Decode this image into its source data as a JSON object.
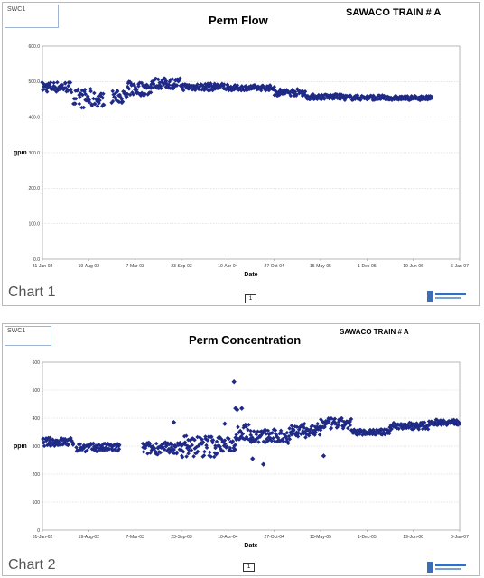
{
  "chart_data": [
    {
      "type": "scatter",
      "panel_tag": "SWC1",
      "title": "Perm Flow",
      "train_label": "SAWACO TRAIN # A",
      "corner_label": "Chart 1",
      "nav_label": "1",
      "xlabel": "Date",
      "ylabel": "gpm",
      "ylim": [
        0,
        600
      ],
      "yticks": [
        "0.0",
        "100.0",
        "200.0",
        "300.0",
        "400.0",
        "500.0",
        "600.0"
      ],
      "xticks": [
        "31-Jan-02",
        "19-Aug-02",
        "7-Mar-03",
        "23-Sep-03",
        "10-Apr-04",
        "27-Oct-04",
        "15-May-05",
        "1-Dec-05",
        "19-Jun-06",
        "6-Jan-07"
      ],
      "grid": true,
      "legend": "none",
      "marker_color": "#1f2a86",
      "series": [
        {
          "segments": [
            {
              "x0": 0.0,
              "x1": 1.9,
              "lo": 470,
              "hi": 500
            },
            {
              "x0": 2.0,
              "x1": 3.2,
              "lo": 425,
              "hi": 480
            },
            {
              "x0": 3.3,
              "x1": 4.0,
              "lo": 430,
              "hi": 470
            },
            {
              "x0": 4.5,
              "x1": 5.5,
              "lo": 440,
              "hi": 475
            },
            {
              "x0": 5.5,
              "x1": 7.0,
              "lo": 460,
              "hi": 500
            },
            {
              "x0": 7.0,
              "x1": 9.0,
              "lo": 480,
              "hi": 510
            },
            {
              "x0": 9.0,
              "x1": 12.0,
              "lo": 475,
              "hi": 495
            },
            {
              "x0": 12.0,
              "x1": 15.0,
              "lo": 475,
              "hi": 490
            },
            {
              "x0": 15.0,
              "x1": 17.0,
              "lo": 460,
              "hi": 480
            },
            {
              "x0": 17.0,
              "x1": 19.5,
              "lo": 450,
              "hi": 465
            },
            {
              "x0": 19.5,
              "x1": 22.0,
              "lo": 448,
              "hi": 462
            },
            {
              "x0": 22.0,
              "x1": 25.2,
              "lo": 448,
              "hi": 460
            }
          ]
        }
      ]
    },
    {
      "type": "scatter",
      "panel_tag": "SWC1",
      "title": "Perm Concentration",
      "train_label": "SAWACO TRAIN # A",
      "corner_label": "Chart 2",
      "nav_label": "1",
      "xlabel": "Date",
      "ylabel": "ppm",
      "ylim": [
        0,
        600
      ],
      "yticks": [
        "0",
        "100",
        "200",
        "300",
        "400",
        "500",
        "600"
      ],
      "xticks": [
        "31-Jan-02",
        "19-Aug-02",
        "7-Mar-03",
        "23-Sep-03",
        "10-Apr-04",
        "27-Oct-04",
        "15-May-05",
        "1-Dec-05",
        "19-Jun-06",
        "6-Jan-07"
      ],
      "grid": true,
      "legend": "none",
      "marker_color": "#1f2a86",
      "series": [
        {
          "segments": [
            {
              "x0": 0.0,
              "x1": 2.0,
              "lo": 300,
              "hi": 330
            },
            {
              "x0": 2.2,
              "x1": 5.0,
              "lo": 280,
              "hi": 310
            },
            {
              "x0": 6.5,
              "x1": 9.0,
              "lo": 270,
              "hi": 315
            },
            {
              "x0": 9.0,
              "x1": 11.5,
              "lo": 260,
              "hi": 340
            },
            {
              "x0": 11.5,
              "x1": 12.5,
              "lo": 280,
              "hi": 330
            },
            {
              "x0": 12.5,
              "x1": 13.5,
              "lo": 320,
              "hi": 380
            },
            {
              "x0": 13.5,
              "x1": 16.0,
              "lo": 310,
              "hi": 360
            },
            {
              "x0": 16.0,
              "x1": 18.0,
              "lo": 330,
              "hi": 380
            },
            {
              "x0": 18.0,
              "x1": 20.0,
              "lo": 360,
              "hi": 400
            },
            {
              "x0": 20.0,
              "x1": 22.5,
              "lo": 340,
              "hi": 360
            },
            {
              "x0": 22.5,
              "x1": 25.0,
              "lo": 360,
              "hi": 385
            },
            {
              "x0": 25.0,
              "x1": 27.0,
              "lo": 375,
              "hi": 395
            }
          ],
          "outliers": [
            {
              "x": 12.4,
              "y": 530
            },
            {
              "x": 12.5,
              "y": 435
            },
            {
              "x": 12.6,
              "y": 430
            },
            {
              "x": 12.9,
              "y": 435
            },
            {
              "x": 8.5,
              "y": 385
            },
            {
              "x": 11.8,
              "y": 380
            },
            {
              "x": 13.6,
              "y": 255
            },
            {
              "x": 14.3,
              "y": 235
            },
            {
              "x": 18.2,
              "y": 265
            }
          ]
        }
      ]
    }
  ]
}
